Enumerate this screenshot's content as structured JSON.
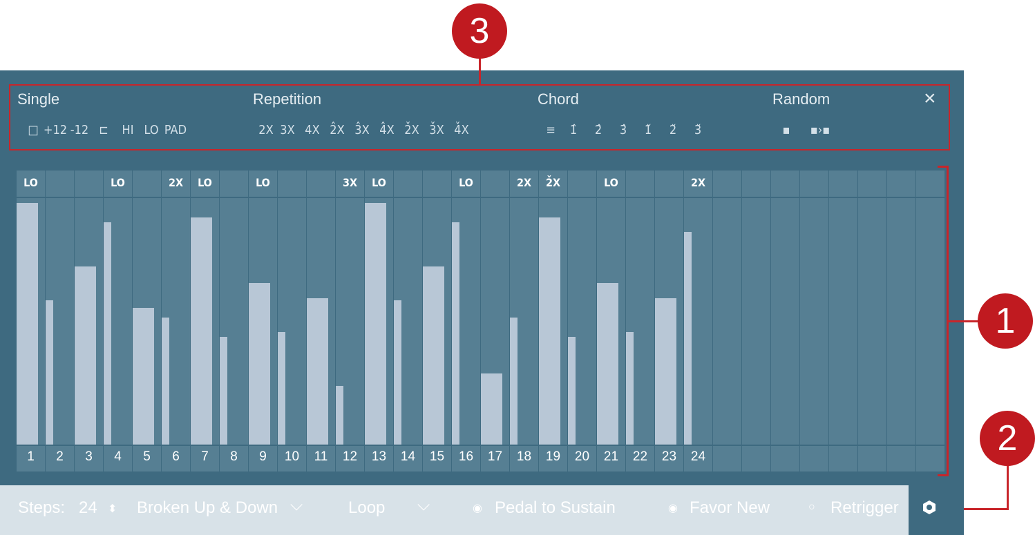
{
  "toolbar": {
    "sections": [
      {
        "title": "Single",
        "icons": [
          "□",
          "+12",
          "-12",
          "⊏",
          "HI",
          "LO",
          "PAD"
        ]
      },
      {
        "title": "Repetition",
        "icons": [
          "2X",
          "3X",
          "4X",
          "2̂X",
          "3̂X",
          "4̂X",
          "2̌X",
          "3̌X",
          "4̌X"
        ]
      },
      {
        "title": "Chord",
        "icons": [
          "≡",
          "1̂",
          "2̂",
          "3̂",
          "1̌",
          "2̌",
          "3̌"
        ]
      },
      {
        "title": "Random",
        "icons": [
          "▪",
          "▪›▪"
        ]
      }
    ],
    "close": "×"
  },
  "grid": {
    "columns": 32,
    "steps": [
      {
        "n": "1",
        "top": "LO",
        "value": 0.99
      },
      {
        "n": "2",
        "top": "",
        "value": 0.59
      },
      {
        "n": "3",
        "top": "",
        "value": 0.73
      },
      {
        "n": "4",
        "top": "LO",
        "value": 0.91
      },
      {
        "n": "5",
        "top": "",
        "value": 0.56
      },
      {
        "n": "6",
        "top": "2X",
        "value": 0.52
      },
      {
        "n": "7",
        "top": "LO",
        "value": 0.93
      },
      {
        "n": "8",
        "top": "",
        "value": 0.44
      },
      {
        "n": "9",
        "top": "LO",
        "value": 0.66
      },
      {
        "n": "10",
        "top": "",
        "value": 0.46
      },
      {
        "n": "11",
        "top": "",
        "value": 0.6
      },
      {
        "n": "12",
        "top": "3X",
        "value": 0.24
      },
      {
        "n": "13",
        "top": "LO",
        "value": 0.99
      },
      {
        "n": "14",
        "top": "",
        "value": 0.59
      },
      {
        "n": "15",
        "top": "",
        "value": 0.73
      },
      {
        "n": "16",
        "top": "LO",
        "value": 0.91
      },
      {
        "n": "17",
        "top": "",
        "value": 0.29
      },
      {
        "n": "18",
        "top": "2X",
        "value": 0.52
      },
      {
        "n": "19",
        "top": "2̌X",
        "value": 0.93
      },
      {
        "n": "20",
        "top": "",
        "value": 0.44
      },
      {
        "n": "21",
        "top": "LO",
        "value": 0.66
      },
      {
        "n": "22",
        "top": "",
        "value": 0.46
      },
      {
        "n": "23",
        "top": "",
        "value": 0.6
      },
      {
        "n": "24",
        "top": "2X",
        "value": 0.87
      }
    ]
  },
  "callouts": [
    "1",
    "2",
    "3"
  ],
  "footer": {
    "steps_label": "Steps:",
    "steps_value": "24",
    "steps_arrows": "⬍",
    "pattern": "Broken Up & Down",
    "pattern_chevron": "⌵",
    "loop": "Loop",
    "loop_chevron": "⌵",
    "pedal": "Pedal to Sustain",
    "favor": "Favor New",
    "retrigger": "Retrigger",
    "radio_on": "◉",
    "radio_off": "○"
  },
  "colors": {
    "panel": "#3e6a80",
    "cell": "#567f93",
    "bar": "#b8c7d6",
    "callout": "#c01a20",
    "footer": "#d8e2e8"
  }
}
